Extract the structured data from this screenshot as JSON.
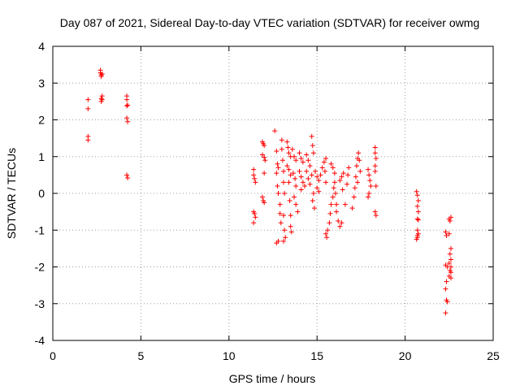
{
  "chart_data": {
    "type": "scatter",
    "title": "Day 087 of 2021, Sidereal Day-to-day VTEC variation (SDTVAR) for receiver owmg",
    "xlabel": "GPS time / hours",
    "ylabel": "SDTVAR / TECUs",
    "xlim": [
      0,
      25
    ],
    "ylim": [
      -4,
      4
    ],
    "xticks": [
      0,
      5,
      10,
      15,
      20,
      25
    ],
    "yticks": [
      -4,
      -3,
      -2,
      -1,
      0,
      1,
      2,
      3,
      4
    ],
    "xtick_labels": [
      "0",
      "5",
      "10",
      "15",
      "20",
      "25"
    ],
    "ytick_labels": [
      "-4",
      "-3",
      "-2",
      "-1",
      "0",
      "1",
      "2",
      "3",
      "4"
    ],
    "grid": true,
    "marker": "+",
    "color": "#ff0000",
    "series": [
      {
        "name": "SDTVAR",
        "points": [
          [
            2.0,
            2.55
          ],
          [
            2.0,
            2.3
          ],
          [
            2.0,
            1.55
          ],
          [
            2.0,
            1.45
          ],
          [
            2.7,
            3.35
          ],
          [
            2.7,
            3.28
          ],
          [
            2.75,
            3.22
          ],
          [
            2.75,
            3.18
          ],
          [
            2.8,
            3.25
          ],
          [
            2.8,
            2.65
          ],
          [
            2.75,
            2.58
          ],
          [
            2.75,
            2.5
          ],
          [
            2.8,
            2.55
          ],
          [
            4.2,
            2.65
          ],
          [
            4.2,
            2.55
          ],
          [
            4.25,
            2.4
          ],
          [
            4.2,
            2.38
          ],
          [
            4.2,
            2.05
          ],
          [
            4.25,
            1.95
          ],
          [
            4.2,
            0.5
          ],
          [
            4.25,
            0.42
          ],
          [
            11.4,
            0.65
          ],
          [
            11.4,
            0.5
          ],
          [
            11.45,
            0.4
          ],
          [
            11.5,
            0.3
          ],
          [
            11.4,
            -0.5
          ],
          [
            11.45,
            -0.55
          ],
          [
            11.5,
            -0.65
          ],
          [
            11.4,
            -0.8
          ],
          [
            11.9,
            1.4
          ],
          [
            11.95,
            1.35
          ],
          [
            12.0,
            1.3
          ],
          [
            11.9,
            1.05
          ],
          [
            12.0,
            0.98
          ],
          [
            12.05,
            0.9
          ],
          [
            12.0,
            0.55
          ],
          [
            11.9,
            -0.1
          ],
          [
            11.95,
            -0.2
          ],
          [
            12.0,
            -0.25
          ],
          [
            12.6,
            1.7
          ],
          [
            12.7,
            1.15
          ],
          [
            12.75,
            0.8
          ],
          [
            12.8,
            0.7
          ],
          [
            12.7,
            0.55
          ],
          [
            12.75,
            0.2
          ],
          [
            12.8,
            0.0
          ],
          [
            12.9,
            -0.3
          ],
          [
            12.9,
            -0.55
          ],
          [
            12.95,
            -0.8
          ],
          [
            12.8,
            -1.3
          ],
          [
            12.7,
            -1.35
          ],
          [
            13.0,
            1.45
          ],
          [
            13.0,
            1.2
          ],
          [
            13.05,
            0.9
          ],
          [
            13.1,
            0.6
          ],
          [
            13.1,
            0.3
          ],
          [
            13.15,
            0.0
          ],
          [
            13.1,
            -0.6
          ],
          [
            13.15,
            -1.0
          ],
          [
            13.2,
            -1.2
          ],
          [
            13.1,
            -1.3
          ],
          [
            13.3,
            1.4
          ],
          [
            13.35,
            1.25
          ],
          [
            13.4,
            1.1
          ],
          [
            13.5,
            1.0
          ],
          [
            13.3,
            0.75
          ],
          [
            13.4,
            0.65
          ],
          [
            13.5,
            0.5
          ],
          [
            13.4,
            0.3
          ],
          [
            13.45,
            -0.2
          ],
          [
            13.5,
            -0.6
          ],
          [
            13.5,
            -0.9
          ],
          [
            13.55,
            -1.05
          ],
          [
            13.6,
            1.2
          ],
          [
            13.7,
            1.0
          ],
          [
            13.8,
            0.9
          ],
          [
            13.65,
            0.55
          ],
          [
            13.75,
            0.4
          ],
          [
            13.8,
            0.2
          ],
          [
            13.7,
            -0.1
          ],
          [
            13.8,
            -0.3
          ],
          [
            13.9,
            -0.5
          ],
          [
            14.0,
            1.1
          ],
          [
            14.1,
            0.95
          ],
          [
            14.2,
            0.85
          ],
          [
            14.0,
            0.6
          ],
          [
            14.1,
            0.45
          ],
          [
            14.2,
            0.3
          ],
          [
            14.3,
            0.2
          ],
          [
            14.1,
            0.1
          ],
          [
            14.4,
            1.05
          ],
          [
            14.5,
            0.9
          ],
          [
            14.6,
            0.75
          ],
          [
            14.4,
            0.6
          ],
          [
            14.5,
            0.4
          ],
          [
            14.6,
            0.25
          ],
          [
            14.7,
            1.55
          ],
          [
            14.75,
            1.3
          ],
          [
            14.8,
            1.1
          ],
          [
            14.7,
            0.5
          ],
          [
            14.8,
            0.0
          ],
          [
            14.75,
            -0.2
          ],
          [
            14.85,
            -0.4
          ],
          [
            14.9,
            0.6
          ],
          [
            15.0,
            0.45
          ],
          [
            15.1,
            0.35
          ],
          [
            15.0,
            0.15
          ],
          [
            15.1,
            0.05
          ],
          [
            15.2,
            0.5
          ],
          [
            15.3,
            0.7
          ],
          [
            15.4,
            0.85
          ],
          [
            15.5,
            0.95
          ],
          [
            15.45,
            0.6
          ],
          [
            15.5,
            0.3
          ],
          [
            15.5,
            -1.1
          ],
          [
            15.55,
            -1.2
          ],
          [
            15.6,
            -1.0
          ],
          [
            15.7,
            -0.8
          ],
          [
            15.75,
            -0.55
          ],
          [
            15.8,
            -0.3
          ],
          [
            15.9,
            -0.1
          ],
          [
            15.95,
            0.15
          ],
          [
            15.8,
            0.8
          ],
          [
            15.9,
            0.7
          ],
          [
            16.0,
            0.55
          ],
          [
            16.0,
            0.3
          ],
          [
            16.05,
            0.0
          ],
          [
            16.1,
            -0.3
          ],
          [
            16.1,
            -0.5
          ],
          [
            16.2,
            -0.75
          ],
          [
            16.3,
            -0.9
          ],
          [
            16.4,
            -0.8
          ],
          [
            16.3,
            0.35
          ],
          [
            16.4,
            0.45
          ],
          [
            16.5,
            0.55
          ],
          [
            16.45,
            0.1
          ],
          [
            16.6,
            -0.3
          ],
          [
            16.7,
            0.25
          ],
          [
            16.75,
            0.5
          ],
          [
            16.8,
            0.7
          ],
          [
            17.0,
            -0.4
          ],
          [
            17.1,
            -0.1
          ],
          [
            17.15,
            0.15
          ],
          [
            17.2,
            0.45
          ],
          [
            17.25,
            0.75
          ],
          [
            17.3,
            0.95
          ],
          [
            17.35,
            1.1
          ],
          [
            17.4,
            0.9
          ],
          [
            17.45,
            0.6
          ],
          [
            17.3,
            0.3
          ],
          [
            17.9,
            0.65
          ],
          [
            17.95,
            0.5
          ],
          [
            18.0,
            0.35
          ],
          [
            18.05,
            0.2
          ],
          [
            17.95,
            0.0
          ],
          [
            17.9,
            -0.1
          ],
          [
            18.3,
            1.25
          ],
          [
            18.3,
            1.1
          ],
          [
            18.35,
            0.95
          ],
          [
            18.3,
            0.75
          ],
          [
            18.3,
            0.6
          ],
          [
            18.35,
            0.2
          ],
          [
            18.3,
            -0.5
          ],
          [
            18.35,
            -0.6
          ],
          [
            20.65,
            0.05
          ],
          [
            20.7,
            -0.05
          ],
          [
            20.75,
            -0.2
          ],
          [
            20.7,
            -0.35
          ],
          [
            20.75,
            -0.5
          ],
          [
            20.7,
            -0.7
          ],
          [
            20.75,
            -0.72
          ],
          [
            20.7,
            -1.0
          ],
          [
            20.75,
            -1.1
          ],
          [
            20.7,
            -1.2
          ],
          [
            20.65,
            -1.25
          ],
          [
            20.7,
            -1.15
          ],
          [
            22.3,
            -1.05
          ],
          [
            22.35,
            -1.15
          ],
          [
            22.3,
            -1.95
          ],
          [
            22.4,
            -2.0
          ],
          [
            22.35,
            -2.4
          ],
          [
            22.3,
            -2.6
          ],
          [
            22.35,
            -2.9
          ],
          [
            22.4,
            -2.95
          ],
          [
            22.3,
            -3.25
          ],
          [
            22.5,
            -0.7
          ],
          [
            22.55,
            -0.75
          ],
          [
            22.6,
            -0.65
          ],
          [
            22.6,
            -1.5
          ],
          [
            22.55,
            -1.65
          ],
          [
            22.6,
            -1.8
          ],
          [
            22.5,
            -1.9
          ],
          [
            22.6,
            -2.0
          ],
          [
            22.55,
            -2.1
          ],
          [
            22.6,
            -2.15
          ],
          [
            22.5,
            -2.25
          ],
          [
            22.6,
            -2.3
          ],
          [
            22.5,
            -1.1
          ]
        ]
      }
    ]
  }
}
